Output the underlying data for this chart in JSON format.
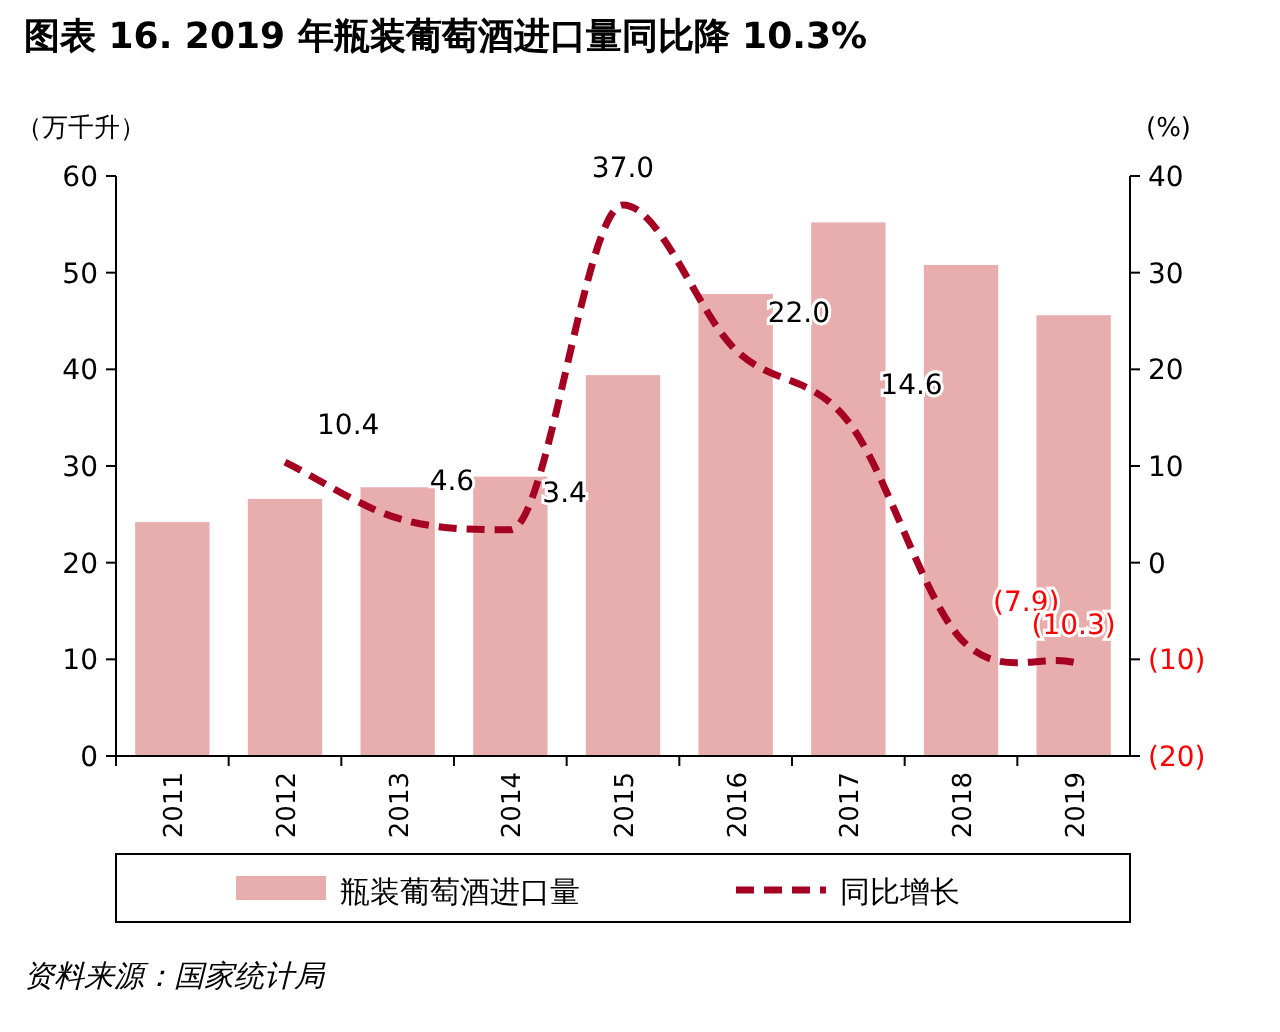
{
  "chart_data": {
    "type": "bar",
    "title": "图表 16. 2019 年瓶装葡萄酒进口量同比降 10.3%",
    "ylabel": "（万千升）",
    "y2label": "(%)",
    "categories": [
      "2011",
      "2012",
      "2013",
      "2014",
      "2015",
      "2016",
      "2017",
      "2018",
      "2019"
    ],
    "series": [
      {
        "name": "瓶装葡萄酒进口量",
        "color": "#e8aeae",
        "values": [
          24.2,
          26.6,
          27.8,
          28.9,
          39.4,
          47.8,
          55.2,
          50.8,
          45.6
        ]
      },
      {
        "name": "同比增长",
        "type": "line",
        "axis": "y2",
        "color": "#a50021",
        "line_style": "dashed",
        "marker": "none",
        "values": [
          null,
          10.4,
          4.6,
          3.4,
          37.0,
          22.0,
          14.6,
          -7.9,
          -10.3
        ],
        "value_labels": [
          null,
          "10.4",
          "4.6",
          "3.4",
          "37.0",
          "22.0",
          "14.6",
          "(7.9)",
          "(10.3)"
        ]
      }
    ],
    "ylim": [
      0,
      60
    ],
    "yticks": [
      0,
      10,
      20,
      30,
      40,
      50,
      60
    ],
    "y2lim": [
      -20,
      40
    ],
    "y2ticks": [
      {
        "value": -20,
        "label": "(20)"
      },
      {
        "value": -10,
        "label": "(10)"
      },
      0,
      10,
      20,
      30,
      40
    ],
    "grid": false,
    "legend": "bottom",
    "annotations": [
      "资料来源：国家统计局"
    ]
  }
}
